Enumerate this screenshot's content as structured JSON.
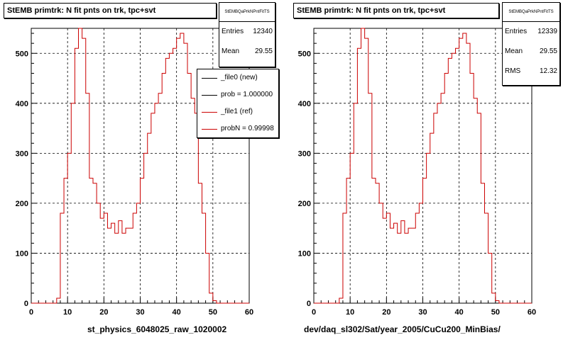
{
  "chart_data": [
    {
      "type": "line",
      "title": "StEMB primtrk: N fit pnts on trk, tpc+svt",
      "xlabel": "st_physics_6048025_raw_1020002",
      "ylabel": "",
      "xlim": [
        0,
        60
      ],
      "ylim": [
        0,
        550
      ],
      "xticks": [
        0,
        10,
        20,
        30,
        40,
        50,
        60
      ],
      "yticks": [
        0,
        100,
        200,
        300,
        400,
        500
      ],
      "grid": true,
      "stats": {
        "name": "StEMBQaPrkNPntFitTS",
        "entries_label": "Entries",
        "entries": "12340",
        "mean_label": "Mean",
        "mean": "29.55"
      },
      "legend": {
        "placement": "top-right",
        "entries": [
          {
            "label": "_file0 (new)",
            "color": "#000000"
          },
          {
            "label": "prob = 1.000000",
            "color": "#000000"
          },
          {
            "label": "_file1 (ref)",
            "color": "#cc0000"
          },
          {
            "label": "probN = 0.99998",
            "color": "#cc0000"
          }
        ]
      },
      "series": [
        {
          "name": "_file1 (ref)",
          "color": "#cc0000",
          "bin_edges": [
            0,
            1,
            2,
            3,
            4,
            5,
            6,
            7,
            8,
            9,
            10,
            11,
            12,
            13,
            14,
            15,
            16,
            17,
            18,
            19,
            20,
            21,
            22,
            23,
            24,
            25,
            26,
            27,
            28,
            29,
            30,
            31,
            32,
            33,
            34,
            35,
            36,
            37,
            38,
            39,
            40,
            41,
            42,
            43,
            44,
            45,
            46,
            47,
            48,
            49,
            50,
            51,
            52,
            53,
            54,
            55,
            56,
            57,
            58,
            59,
            60
          ],
          "values": [
            0,
            0,
            0,
            0,
            0,
            0,
            0,
            10,
            180,
            250,
            300,
            400,
            510,
            550,
            530,
            420,
            250,
            240,
            200,
            170,
            180,
            150,
            160,
            140,
            165,
            140,
            150,
            150,
            180,
            200,
            250,
            300,
            340,
            380,
            400,
            420,
            460,
            490,
            500,
            510,
            530,
            540,
            520,
            460,
            410,
            380,
            240,
            180,
            100,
            20,
            5,
            0,
            0,
            0,
            0,
            0,
            0,
            0,
            0,
            0
          ]
        }
      ]
    },
    {
      "type": "line",
      "title": "StEMB primtrk: N fit pnts on trk, tpc+svt",
      "xlabel": "dev/daq_sl302/Sat/year_2005/CuCu200_MinBias/",
      "ylabel": "",
      "xlim": [
        0,
        60
      ],
      "ylim": [
        0,
        550
      ],
      "xticks": [
        0,
        10,
        20,
        30,
        40,
        50,
        60
      ],
      "yticks": [
        0,
        100,
        200,
        300,
        400,
        500
      ],
      "grid": true,
      "stats": {
        "name": "StEMBQaPrkNPntFitTS",
        "entries_label": "Entries",
        "entries": "12339",
        "mean_label": "Mean",
        "mean": "29.55",
        "rms_label": "RMS",
        "rms": "12.32"
      },
      "series": [
        {
          "name": "",
          "color": "#cc0000",
          "bin_edges": [
            0,
            1,
            2,
            3,
            4,
            5,
            6,
            7,
            8,
            9,
            10,
            11,
            12,
            13,
            14,
            15,
            16,
            17,
            18,
            19,
            20,
            21,
            22,
            23,
            24,
            25,
            26,
            27,
            28,
            29,
            30,
            31,
            32,
            33,
            34,
            35,
            36,
            37,
            38,
            39,
            40,
            41,
            42,
            43,
            44,
            45,
            46,
            47,
            48,
            49,
            50,
            51,
            52,
            53,
            54,
            55,
            56,
            57,
            58,
            59,
            60
          ],
          "values": [
            0,
            0,
            0,
            0,
            0,
            0,
            0,
            10,
            180,
            250,
            300,
            400,
            510,
            550,
            530,
            420,
            250,
            240,
            200,
            170,
            180,
            150,
            160,
            140,
            165,
            140,
            150,
            150,
            180,
            200,
            250,
            300,
            340,
            380,
            400,
            420,
            460,
            490,
            500,
            510,
            530,
            540,
            520,
            460,
            410,
            380,
            240,
            180,
            100,
            20,
            5,
            0,
            0,
            0,
            0,
            0,
            0,
            0,
            0,
            0
          ]
        }
      ]
    }
  ]
}
